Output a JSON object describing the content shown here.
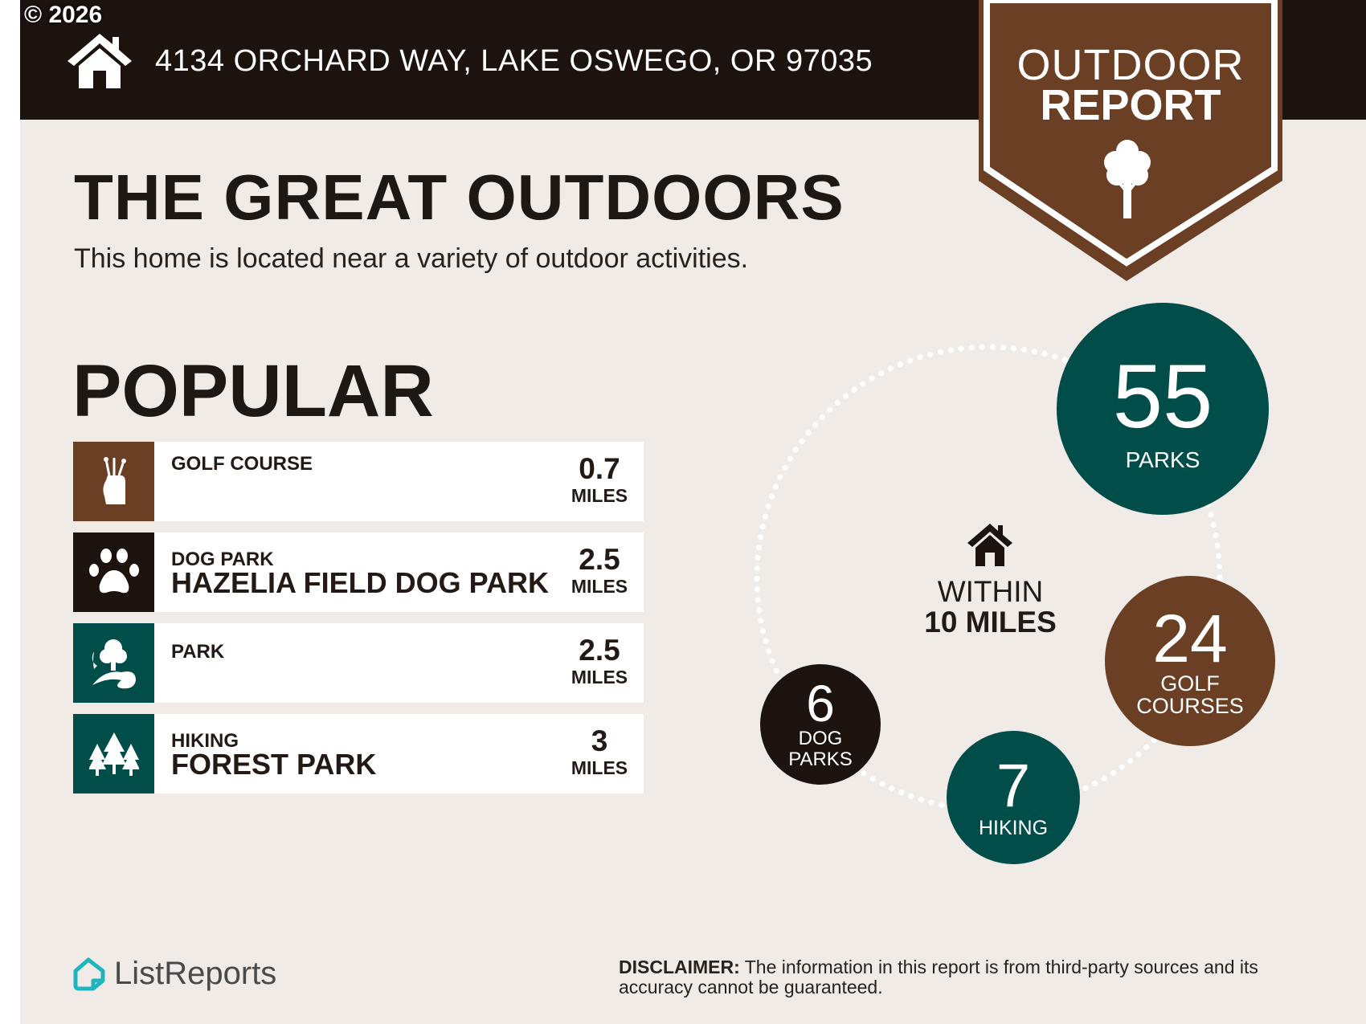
{
  "copyright": "© 2026",
  "header": {
    "address": "4134 ORCHARD WAY, LAKE OSWEGO, OR 97035",
    "icon": "house-icon"
  },
  "badge": {
    "line1": "OUTDOOR",
    "line2": "REPORT",
    "icon": "tree-icon"
  },
  "title": "THE GREAT OUTDOORS",
  "subtitle": "This home is located near a variety of outdoor activities.",
  "popular": {
    "heading": "POPULAR",
    "items": [
      {
        "category": "GOLF COURSE",
        "name": "",
        "distance": "0.7",
        "unit": "MILES",
        "icon": "golf-bag-icon",
        "color": "#6b3f24"
      },
      {
        "category": "DOG PARK",
        "name": "HAZELIA FIELD DOG PARK",
        "distance": "2.5",
        "unit": "MILES",
        "icon": "paw-icon",
        "color": "#1c120e"
      },
      {
        "category": "PARK",
        "name": "",
        "distance": "2.5",
        "unit": "MILES",
        "icon": "park-icon",
        "color": "#004d4a"
      },
      {
        "category": "HIKING",
        "name": "FOREST PARK",
        "distance": "3",
        "unit": "MILES",
        "icon": "pine-trees-icon",
        "color": "#004d4a"
      }
    ]
  },
  "within": {
    "line1": "WITHIN",
    "line2": "10 MILES"
  },
  "counts": [
    {
      "value": "55",
      "label": "PARKS",
      "color": "#004d4a"
    },
    {
      "value": "24",
      "label": "GOLF COURSES",
      "color": "#6b3f24"
    },
    {
      "value": "7",
      "label": "HIKING",
      "color": "#004d4a"
    },
    {
      "value": "6",
      "label": "DOG PARKS",
      "color": "#1c120e"
    }
  ],
  "footer": {
    "logo": "ListReports",
    "disclaimer_label": "DISCLAIMER:",
    "disclaimer": " The information in this report is from third-party sources and its accuracy cannot be guaranteed."
  },
  "colors": {
    "dark": "#1c120e",
    "brown": "#6b3f24",
    "teal": "#004d4a",
    "background": "#f0ebe7",
    "logo": "#1fb5bf"
  }
}
